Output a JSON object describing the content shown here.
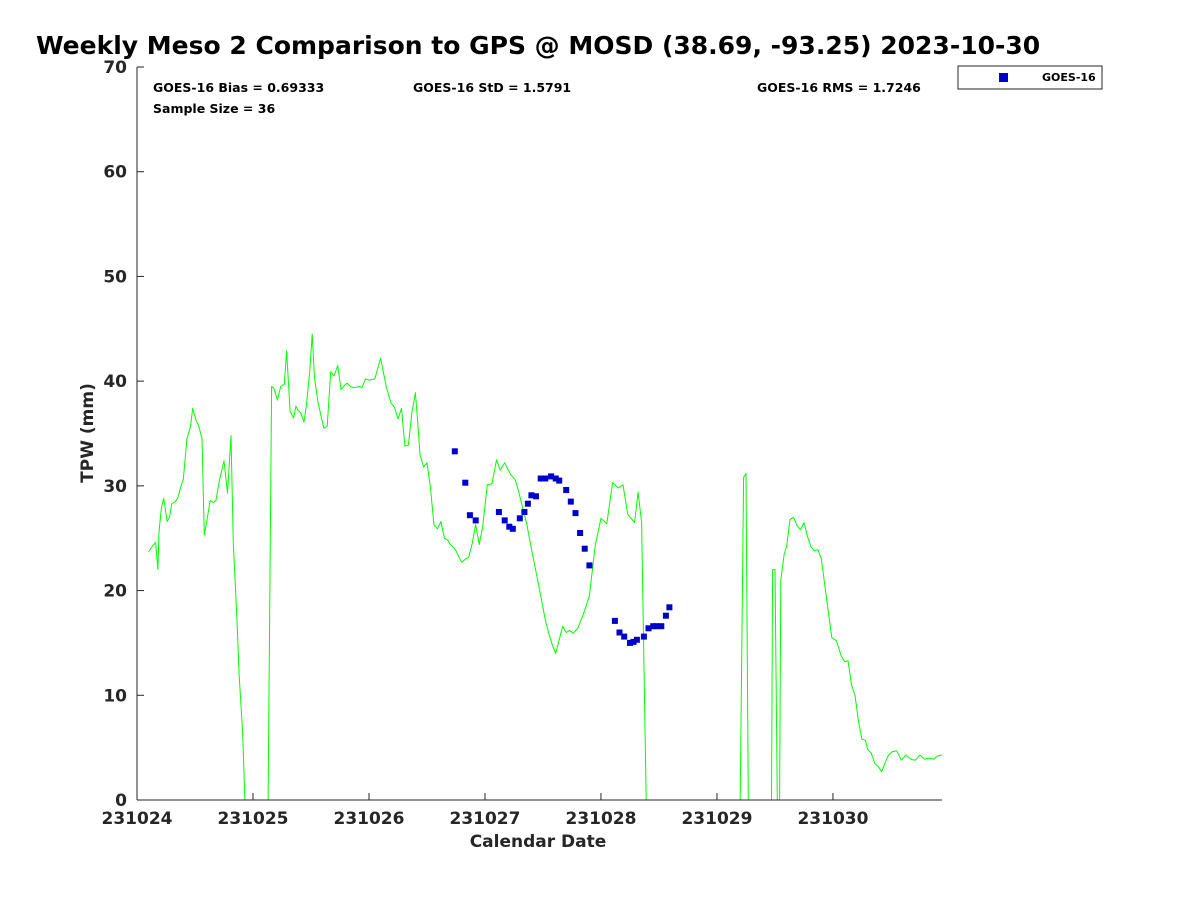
{
  "chart_data": {
    "type": "line",
    "title": "Weekly Meso 2 Comparison to GPS @ MOSD (38.69, -93.25) 2023-10-30",
    "xlabel": "Calendar Date",
    "ylabel": "TPW (mm)",
    "xlim": [
      231024.0,
      231030.94
    ],
    "ylim": [
      0,
      70
    ],
    "x_ticks": [
      {
        "value": 231024,
        "label": "231024"
      },
      {
        "value": 231025,
        "label": "231025"
      },
      {
        "value": 231026,
        "label": "231026"
      },
      {
        "value": 231027,
        "label": "231027"
      },
      {
        "value": 231028,
        "label": "231028"
      },
      {
        "value": 231029,
        "label": "231029"
      },
      {
        "value": 231030,
        "label": "231030"
      }
    ],
    "y_ticks": [
      {
        "value": 0,
        "label": "0"
      },
      {
        "value": 10,
        "label": "10"
      },
      {
        "value": 20,
        "label": "20"
      },
      {
        "value": 30,
        "label": "30"
      },
      {
        "value": 40,
        "label": "40"
      },
      {
        "value": 50,
        "label": "50"
      },
      {
        "value": 60,
        "label": "60"
      },
      {
        "value": 70,
        "label": "70"
      }
    ],
    "grid": false,
    "legend_position": "outside-top-right",
    "stats": {
      "bias": "GOES-16 Bias = 0.69333",
      "std": "GOES-16 StD = 1.5791",
      "rms": "GOES-16 RMS = 1.7246",
      "sample": "Sample Size = 36"
    },
    "series": [
      {
        "type": "line",
        "color": "#00ff00",
        "segments": [
          {
            "x": [
              231024.1,
              231024.13,
              231024.16,
              231024.18,
              231024.19,
              231024.21,
              231024.23,
              231024.26,
              231024.28,
              231024.3,
              231024.33,
              231024.35,
              231024.38,
              231024.4,
              231024.43,
              231024.46,
              231024.48,
              231024.51,
              231024.53,
              231024.56,
              231024.58,
              231024.61,
              231024.63,
              231024.66,
              231024.68,
              231024.71,
              231024.75,
              231024.78,
              231024.81,
              231024.83,
              231024.86,
              231024.88,
              231024.91,
              231024.93,
              231024.96,
              231024.98,
              231025.01,
              231025.04,
              231025.07
            ],
            "y": [
              23.7,
              24.2,
              24.6,
              22.0,
              25.6,
              27.9,
              28.8,
              26.6,
              27.0,
              28.3,
              28.5,
              28.8,
              30.0,
              30.7,
              34.5,
              35.6,
              37.4,
              36.2,
              35.8,
              34.5,
              25.3,
              27.2,
              28.6,
              28.4,
              28.6,
              30.5,
              32.4,
              29.3,
              34.8,
              24.5,
              17.6,
              12.0,
              6.5,
              0.0,
              0.0,
              0.0,
              0.0,
              0.0,
              0.0
            ]
          },
          {
            "x": [
              231025.13,
              231025.16,
              231025.18,
              231025.21,
              231025.24,
              231025.27,
              231025.29,
              231025.32,
              231025.35,
              231025.37,
              231025.39,
              231025.41,
              231025.44,
              231025.46,
              231025.49,
              231025.51,
              231025.53,
              231025.56,
              231025.59,
              231025.61,
              231025.64,
              231025.67,
              231025.7,
              231025.73,
              231025.76,
              231025.79,
              231025.81,
              231025.84,
              231025.86,
              231025.89,
              231025.91,
              231025.94,
              231025.97,
              231026.0,
              231026.05,
              231026.1,
              231026.15,
              231026.19,
              231026.22,
              231026.25,
              231026.28,
              231026.31,
              231026.34,
              231026.37,
              231026.4,
              231026.42,
              231026.44,
              231026.47,
              231026.5,
              231026.53,
              231026.56,
              231026.59,
              231026.62,
              231026.65,
              231026.68,
              231026.7,
              231026.73,
              231026.75,
              231026.78,
              231026.8,
              231026.83,
              231026.86,
              231026.89,
              231026.92,
              231026.95,
              231026.98,
              231027.02,
              231027.06,
              231027.1,
              231027.13,
              231027.17,
              231027.22,
              231027.26,
              231027.29,
              231027.32,
              231027.36,
              231027.4,
              231027.44,
              231027.48,
              231027.52,
              231027.55,
              231027.58,
              231027.61,
              231027.64,
              231027.67,
              231027.7,
              231027.73,
              231027.76,
              231027.8,
              231027.85,
              231027.9,
              231027.95,
              231028.0,
              231028.05,
              231028.1,
              231028.15,
              231028.19,
              231028.23,
              231028.26,
              231028.29,
              231028.32,
              231028.35,
              231028.39,
              231028.43,
              231028.47,
              231028.51,
              231028.55,
              231028.59,
              231028.62,
              231028.65,
              231028.68,
              231028.71,
              231028.74,
              231028.77,
              231028.8,
              231028.84,
              231028.88,
              231028.92,
              231028.96,
              231029.01,
              231029.06,
              231029.1,
              231029.14,
              231029.16
            ],
            "y": [
              0.0,
              39.5,
              39.3,
              38.2,
              39.5,
              39.7,
              42.9,
              37.1,
              36.5,
              37.6,
              37.2,
              37.0,
              36.1,
              37.7,
              41.0,
              44.5,
              40.3,
              38.0,
              36.5,
              35.5,
              35.7,
              40.9,
              40.5,
              41.5,
              39.2,
              39.6,
              39.8,
              39.5,
              39.4,
              39.4,
              39.5,
              39.4,
              40.2,
              40.1,
              40.2,
              42.2,
              39.4,
              37.9,
              37.5,
              36.4,
              37.4,
              33.8,
              33.9,
              37.0,
              38.9,
              36.1,
              33.0,
              31.8,
              32.2,
              29.8,
              26.3,
              25.9,
              26.6,
              25.0,
              24.8,
              24.4,
              24.1,
              23.8,
              23.1,
              22.7,
              23.0,
              23.2,
              24.5,
              26.3,
              24.4,
              26.1,
              30.1,
              30.2,
              32.5,
              31.5,
              32.2,
              31.1,
              30.6,
              29.5,
              28.1,
              26.4,
              24.0,
              21.8,
              19.5,
              17.2,
              15.9,
              14.8,
              14.0,
              15.3,
              16.6,
              16.0,
              16.2,
              15.9,
              16.4,
              17.8,
              19.5,
              24.3,
              26.9,
              26.4,
              30.3,
              29.8,
              30.1,
              27.3,
              26.9,
              26.5,
              29.4,
              26.5,
              0.0,
              0.0,
              0.0,
              0.0,
              0.0,
              0.0,
              0.0,
              0.0,
              0.0,
              0.0,
              0.0,
              0.0,
              0.0,
              0.0,
              0.0,
              0.0,
              0.0,
              0.0,
              0.0,
              0.0,
              0.0,
              0.0
            ]
          },
          {
            "x": [
              231029.2,
              231029.23,
              231029.25,
              231029.27
            ],
            "y": [
              0.0,
              30.8,
              31.2,
              0.0
            ]
          },
          {
            "x": [
              231029.47,
              231029.48,
              231029.5,
              231029.52
            ],
            "y": [
              0.0,
              22.0,
              22.0,
              0.0
            ]
          },
          {
            "x": [
              231029.54,
              231029.55,
              231029.58,
              231029.6,
              231029.63,
              231029.66,
              231029.69,
              231029.72,
              231029.75,
              231029.78,
              231029.81,
              231029.84,
              231029.87,
              231029.9,
              231029.93,
              231029.96,
              231029.99,
              231030.03,
              231030.07,
              231030.1,
              231030.13,
              231030.16,
              231030.19,
              231030.22,
              231030.25,
              231030.28,
              231030.3,
              231030.33,
              231030.36,
              231030.39,
              231030.42,
              231030.45,
              231030.48,
              231030.51,
              231030.55,
              231030.59,
              231030.63,
              231030.67,
              231030.71,
              231030.75,
              231030.79,
              231030.83,
              231030.87,
              231030.9,
              231030.94
            ],
            "y": [
              0.0,
              21.0,
              23.5,
              24.2,
              26.8,
              27.0,
              26.2,
              25.8,
              26.5,
              25.2,
              24.2,
              23.8,
              23.9,
              23.0,
              20.5,
              18.0,
              15.5,
              15.2,
              13.8,
              13.2,
              13.3,
              11.0,
              10.0,
              7.5,
              5.8,
              5.7,
              4.8,
              4.5,
              3.5,
              3.2,
              2.7,
              3.6,
              4.3,
              4.6,
              4.7,
              3.8,
              4.3,
              3.9,
              3.8,
              4.3,
              3.9,
              4.0,
              3.9,
              4.2,
              4.3
            ]
          }
        ]
      },
      {
        "type": "scatter",
        "name": "GOES-16",
        "color": "#0000cc",
        "x": [
          231026.74,
          231026.83,
          231026.87,
          231026.92,
          231027.12,
          231027.17,
          231027.21,
          231027.24,
          231027.3,
          231027.34,
          231027.37,
          231027.4,
          231027.44,
          231027.48,
          231027.52,
          231027.57,
          231027.61,
          231027.64,
          231027.7,
          231027.74,
          231027.78,
          231027.82,
          231027.86,
          231027.9,
          231028.12,
          231028.16,
          231028.2,
          231028.25,
          231028.28,
          231028.31,
          231028.37,
          231028.41,
          231028.45,
          231028.48,
          231028.52,
          231028.56,
          231028.59
        ],
        "y": [
          33.3,
          30.3,
          27.2,
          26.7,
          27.5,
          26.7,
          26.1,
          25.9,
          26.9,
          27.5,
          28.3,
          29.1,
          29.0,
          30.7,
          30.7,
          30.9,
          30.7,
          30.5,
          29.6,
          28.5,
          27.4,
          25.5,
          24.0,
          22.4,
          17.1,
          16.0,
          15.6,
          15.0,
          15.1,
          15.3,
          15.6,
          16.4,
          16.6,
          16.6,
          16.6,
          17.6,
          18.4
        ]
      }
    ]
  }
}
